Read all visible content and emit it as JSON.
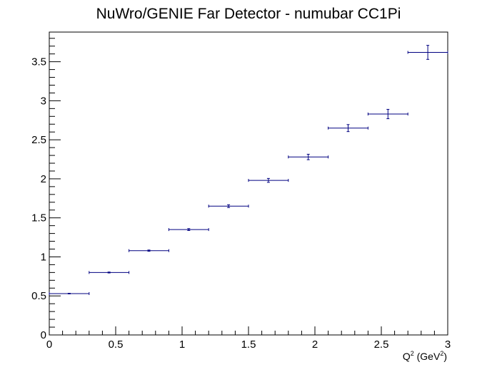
{
  "chart_data": {
    "type": "scatter",
    "title": "NuWro/GENIE Far Detector - numubar CC1Pi",
    "xlabel": {
      "base": "Q",
      "sup": "2",
      "mid": " (GeV",
      "sup2": "2",
      "end": ")"
    },
    "ylabel": "",
    "xlim": [
      0,
      3
    ],
    "ylim": [
      0,
      3.88
    ],
    "x_major_ticks": [
      0,
      0.5,
      1,
      1.5,
      2,
      2.5,
      3
    ],
    "x_tick_labels": [
      "0",
      "0.5",
      "1",
      "1.5",
      "2",
      "2.5",
      "3"
    ],
    "y_major_ticks": [
      0,
      0.5,
      1,
      1.5,
      2,
      2.5,
      3,
      3.5
    ],
    "y_tick_labels": [
      "0",
      "0.5",
      "1",
      "1.5",
      "2",
      "2.5",
      "3",
      "3.5"
    ],
    "grid": false,
    "legend": "none",
    "series": [
      {
        "color": "#000080",
        "points": [
          {
            "x": 0.15,
            "y": 0.53,
            "xerr": 0.15,
            "yerr": 0.004
          },
          {
            "x": 0.45,
            "y": 0.8,
            "xerr": 0.15,
            "yerr": 0.006
          },
          {
            "x": 0.75,
            "y": 1.08,
            "xerr": 0.15,
            "yerr": 0.008
          },
          {
            "x": 1.05,
            "y": 1.35,
            "xerr": 0.15,
            "yerr": 0.012
          },
          {
            "x": 1.35,
            "y": 1.65,
            "xerr": 0.15,
            "yerr": 0.018
          },
          {
            "x": 1.65,
            "y": 1.98,
            "xerr": 0.15,
            "yerr": 0.025
          },
          {
            "x": 1.95,
            "y": 2.28,
            "xerr": 0.15,
            "yerr": 0.035
          },
          {
            "x": 2.25,
            "y": 2.65,
            "xerr": 0.15,
            "yerr": 0.045
          },
          {
            "x": 2.55,
            "y": 2.83,
            "xerr": 0.15,
            "yerr": 0.06
          },
          {
            "x": 2.85,
            "y": 3.62,
            "xerr": 0.15,
            "yerr": 0.09
          }
        ]
      }
    ]
  }
}
